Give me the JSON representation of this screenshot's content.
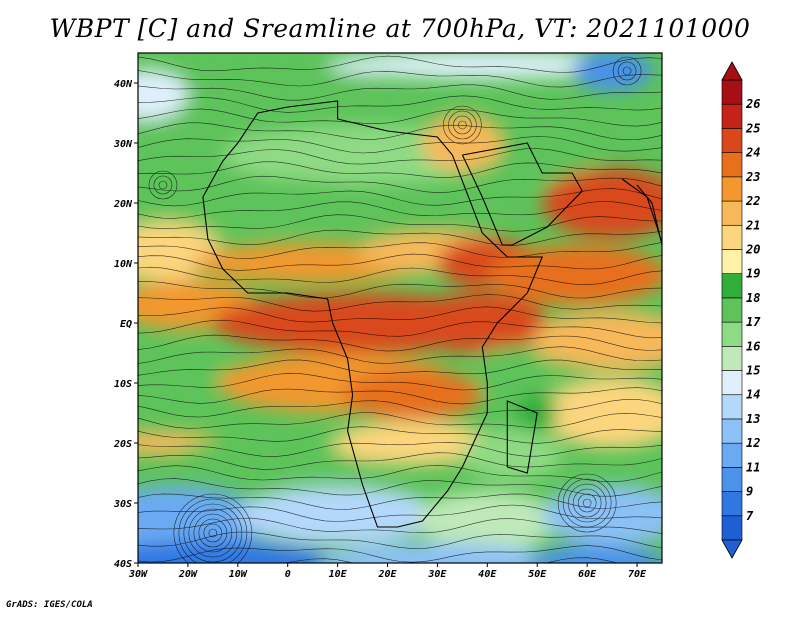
{
  "title": "WBPT [C] and Sreamline at 700hPa, VT: 2021101000",
  "credit": "GrADS: IGES/COLA",
  "map": {
    "lon_range": [
      -30,
      75
    ],
    "lat_range": [
      -40,
      45
    ],
    "lon_ticks": [
      "30W",
      "20W",
      "10W",
      "0",
      "10E",
      "20E",
      "30E",
      "40E",
      "50E",
      "60E",
      "70E"
    ],
    "lon_tick_values": [
      -30,
      -20,
      -10,
      0,
      10,
      20,
      30,
      40,
      50,
      60,
      70
    ],
    "lat_ticks": [
      "40N",
      "30N",
      "20N",
      "10N",
      "EQ",
      "10S",
      "20S",
      "30S",
      "40S"
    ],
    "lat_tick_values": [
      40,
      30,
      20,
      10,
      0,
      -10,
      -20,
      -30,
      -40
    ],
    "field": "wet-bulb potential temperature",
    "overlay": "streamlines"
  },
  "colorbar": {
    "labels": [
      "7",
      "9",
      "11",
      "12",
      "13",
      "14",
      "15",
      "16",
      "17",
      "18",
      "19",
      "20",
      "21",
      "22",
      "23",
      "24",
      "25",
      "26"
    ],
    "colors": [
      "#1f5fd6",
      "#2f78e2",
      "#4a92ea",
      "#6aaaf2",
      "#8cc1f7",
      "#b4d8fb",
      "#dff0fc",
      "#bfe9b8",
      "#8fda84",
      "#5dc35a",
      "#2fae3a",
      "#fff2a6",
      "#fcd67e",
      "#f7b85a",
      "#f2982f",
      "#e8701c",
      "#d9481a",
      "#c52319",
      "#a50f15"
    ]
  }
}
